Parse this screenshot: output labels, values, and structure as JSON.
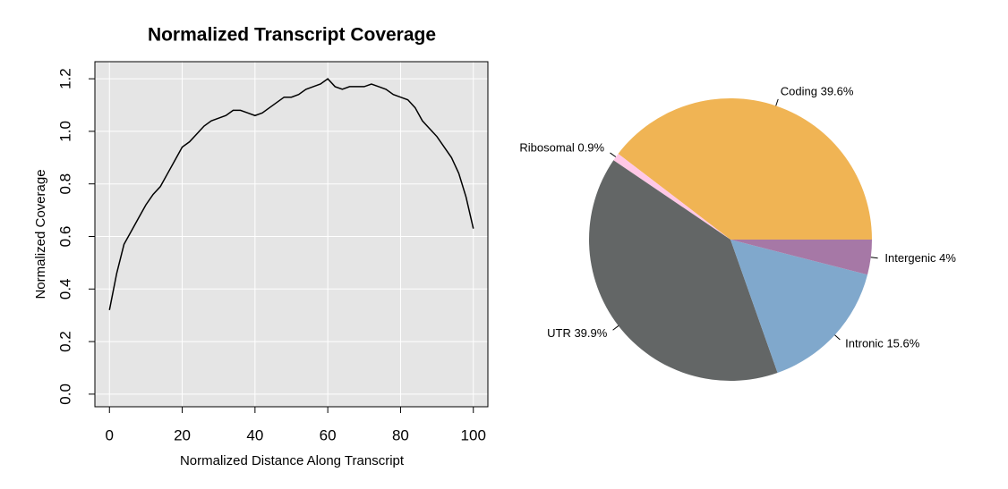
{
  "chart_data": [
    {
      "type": "line",
      "title": "Normalized Transcript Coverage",
      "xlabel": "Normalized Distance Along Transcript",
      "ylabel": "Normalized Coverage",
      "x": [
        0,
        2,
        4,
        6,
        8,
        10,
        12,
        14,
        16,
        18,
        20,
        22,
        24,
        26,
        28,
        30,
        32,
        34,
        36,
        38,
        40,
        42,
        44,
        46,
        48,
        50,
        52,
        54,
        56,
        58,
        60,
        62,
        64,
        66,
        68,
        70,
        72,
        74,
        76,
        78,
        80,
        82,
        84,
        86,
        88,
        90,
        92,
        94,
        96,
        98,
        100
      ],
      "values": [
        0.32,
        0.46,
        0.57,
        0.62,
        0.67,
        0.72,
        0.76,
        0.79,
        0.84,
        0.89,
        0.94,
        0.96,
        0.99,
        1.02,
        1.04,
        1.05,
        1.06,
        1.08,
        1.08,
        1.07,
        1.06,
        1.07,
        1.09,
        1.11,
        1.13,
        1.13,
        1.14,
        1.16,
        1.17,
        1.18,
        1.2,
        1.17,
        1.16,
        1.17,
        1.17,
        1.17,
        1.18,
        1.17,
        1.16,
        1.14,
        1.13,
        1.12,
        1.09,
        1.04,
        1.01,
        0.98,
        0.94,
        0.9,
        0.84,
        0.75,
        0.63
      ],
      "color": "#000000",
      "xlim": [
        -4,
        104
      ],
      "ylim": [
        -0.048,
        1.265
      ],
      "xticks": [
        0,
        20,
        40,
        60,
        80,
        100
      ],
      "yticks": [
        {
          "value": 0,
          "label": "0.0"
        },
        0.2,
        0.4,
        0.6,
        0.8,
        {
          "value": 1,
          "label": "1.0"
        },
        1.2
      ],
      "grid": true,
      "background": "#e5e5e5"
    },
    {
      "type": "pie",
      "categories": [
        "Coding",
        "Ribosomal",
        "UTR",
        "Intronic",
        "Intergenic"
      ],
      "values": [
        39.6,
        0.9,
        39.9,
        15.6,
        4
      ],
      "value_labels": [
        "39.6%",
        "0.9%",
        "39.9%",
        "15.6%",
        "4%"
      ],
      "colors": [
        "#F0B454",
        "#FFC8E6",
        "#636666",
        "#80A8CC",
        "#A678A6"
      ]
    }
  ]
}
